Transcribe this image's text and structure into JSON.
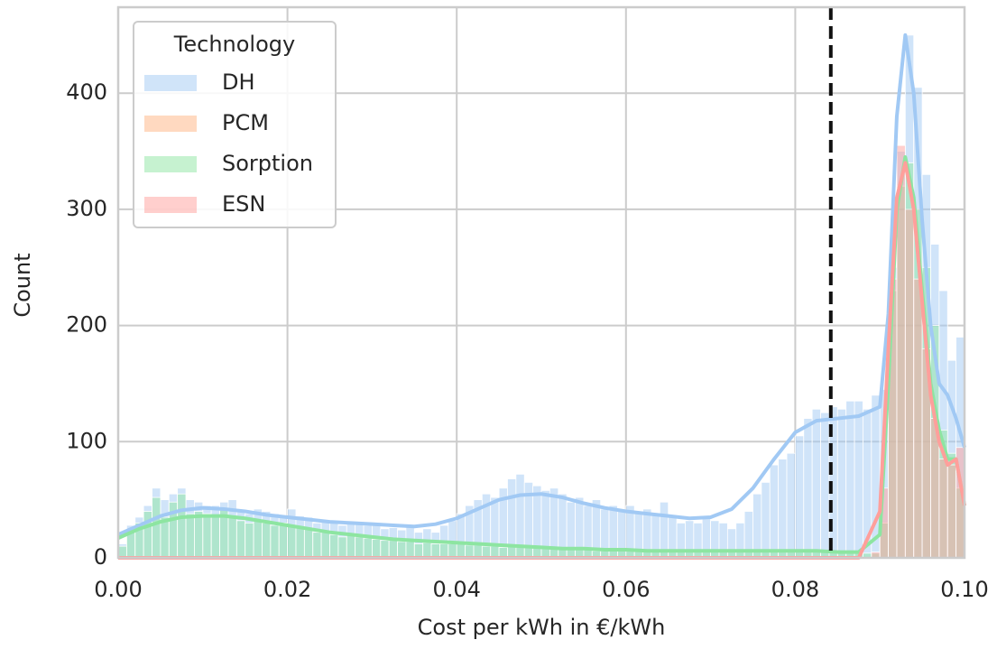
{
  "chart_data": {
    "type": "histogram",
    "xlabel": "Cost per kWh in €/kWh",
    "ylabel": "Count",
    "legend_title": "Technology",
    "legend": "upper left",
    "grid": true,
    "xlim": [
      0,
      0.1
    ],
    "ylim": [
      0,
      474
    ],
    "xticks": [
      {
        "value": 0,
        "label": "0.00"
      },
      {
        "value": 0.02,
        "label": "0.02"
      },
      {
        "value": 0.04,
        "label": "0.04"
      },
      {
        "value": 0.06,
        "label": "0.06"
      },
      {
        "value": 0.08,
        "label": "0.08"
      },
      {
        "value": 0.1,
        "label": "0.10"
      }
    ],
    "yticks": [
      0,
      100,
      200,
      300,
      400
    ],
    "vline": 0.0842,
    "bins": [
      0,
      0.001,
      0.002,
      0.003,
      0.004,
      0.005,
      0.006,
      0.007,
      0.008,
      0.009,
      0.01,
      0.011,
      0.012,
      0.013,
      0.014,
      0.015,
      0.016,
      0.017,
      0.018,
      0.019,
      0.02,
      0.021,
      0.022,
      0.023,
      0.024,
      0.025,
      0.026,
      0.027,
      0.028,
      0.029,
      0.03,
      0.031,
      0.032,
      0.033,
      0.034,
      0.035,
      0.036,
      0.037,
      0.038,
      0.039,
      0.04,
      0.041,
      0.042,
      0.043,
      0.044,
      0.045,
      0.046,
      0.047,
      0.048,
      0.049,
      0.05,
      0.051,
      0.052,
      0.053,
      0.054,
      0.055,
      0.056,
      0.057,
      0.058,
      0.059,
      0.06,
      0.061,
      0.062,
      0.063,
      0.064,
      0.065,
      0.066,
      0.067,
      0.068,
      0.069,
      0.07,
      0.071,
      0.072,
      0.073,
      0.074,
      0.075,
      0.076,
      0.077,
      0.078,
      0.079,
      0.08,
      0.081,
      0.082,
      0.083,
      0.084,
      0.085,
      0.086,
      0.087,
      0.088,
      0.089,
      0.09,
      0.091,
      0.092,
      0.093,
      0.094,
      0.095,
      0.096,
      0.097,
      0.098,
      0.099,
      0.1
    ],
    "kde_x": [
      0,
      0.0025,
      0.005,
      0.0075,
      0.01,
      0.0125,
      0.015,
      0.0175,
      0.02,
      0.0225,
      0.025,
      0.0275,
      0.03,
      0.0325,
      0.035,
      0.0375,
      0.04,
      0.0425,
      0.045,
      0.0475,
      0.05,
      0.0525,
      0.055,
      0.0575,
      0.06,
      0.0625,
      0.065,
      0.0675,
      0.07,
      0.0725,
      0.075,
      0.0775,
      0.08,
      0.0825,
      0.085,
      0.0875,
      0.09,
      0.091,
      0.092,
      0.093,
      0.094,
      0.095,
      0.096,
      0.097,
      0.098,
      0.099,
      0.1
    ],
    "series": [
      {
        "name": "DH",
        "color": "#a1c9f4",
        "values": [
          12,
          28,
          35,
          45,
          60,
          50,
          55,
          60,
          50,
          48,
          45,
          45,
          48,
          50,
          40,
          38,
          42,
          40,
          38,
          35,
          42,
          36,
          35,
          30,
          32,
          30,
          28,
          30,
          30,
          28,
          28,
          25,
          26,
          24,
          28,
          22,
          25,
          22,
          28,
          32,
          38,
          45,
          50,
          55,
          52,
          60,
          68,
          72,
          65,
          62,
          58,
          60,
          55,
          48,
          52,
          45,
          50,
          42,
          45,
          40,
          45,
          40,
          42,
          38,
          48,
          35,
          30,
          32,
          30,
          35,
          32,
          30,
          25,
          30,
          40,
          55,
          65,
          80,
          85,
          90,
          105,
          120,
          128,
          125,
          130,
          128,
          135,
          135,
          128,
          140,
          145,
          250,
          350,
          450,
          405,
          330,
          270,
          230,
          170,
          190
        ],
        "kde": [
          20,
          28,
          36,
          41,
          43,
          42,
          40,
          37,
          35,
          33,
          31,
          30,
          29,
          28,
          27,
          29,
          34,
          42,
          50,
          54,
          55,
          52,
          47,
          43,
          40,
          38,
          36,
          34,
          35,
          42,
          60,
          85,
          108,
          118,
          120,
          122,
          130,
          210,
          380,
          450,
          400,
          290,
          200,
          150,
          140,
          120,
          95
        ]
      },
      {
        "name": "PCM",
        "color": "#ffb482",
        "values": [
          0,
          0,
          0,
          0,
          0,
          0,
          0,
          0,
          0,
          0,
          0,
          0,
          0,
          0,
          0,
          0,
          0,
          0,
          0,
          0,
          0,
          0,
          0,
          0,
          0,
          0,
          0,
          0,
          0,
          0,
          0,
          0,
          0,
          0,
          0,
          0,
          0,
          0,
          0,
          0,
          0,
          0,
          0,
          0,
          0,
          0,
          0,
          0,
          0,
          0,
          0,
          0,
          0,
          0,
          0,
          0,
          0,
          0,
          0,
          0,
          0,
          0,
          0,
          0,
          0,
          0,
          0,
          0,
          0,
          0,
          0,
          0,
          0,
          0,
          0,
          0,
          0,
          0,
          0,
          0,
          0,
          0,
          0,
          0,
          0,
          0,
          0,
          0,
          0,
          0,
          0,
          0,
          0,
          0,
          0,
          0,
          0,
          0,
          0,
          0
        ]
      },
      {
        "name": "Sorption",
        "color": "#8de5a1",
        "values": [
          10,
          22,
          30,
          40,
          52,
          35,
          48,
          55,
          38,
          40,
          38,
          36,
          42,
          35,
          32,
          30,
          33,
          30,
          28,
          30,
          28,
          26,
          25,
          22,
          22,
          20,
          18,
          20,
          18,
          17,
          16,
          15,
          15,
          14,
          14,
          12,
          13,
          12,
          12,
          12,
          12,
          11,
          11,
          10,
          10,
          9,
          10,
          9,
          9,
          9,
          8,
          8,
          8,
          7,
          7,
          7,
          6,
          6,
          6,
          6,
          6,
          6,
          6,
          5,
          5,
          5,
          5,
          5,
          5,
          5,
          5,
          5,
          5,
          5,
          5,
          5,
          5,
          5,
          5,
          5,
          5,
          5,
          5,
          5,
          5,
          5,
          5,
          4,
          4,
          4,
          30,
          230,
          320,
          340,
          300,
          250,
          200,
          110,
          90,
          60
        ],
        "kde": [
          17,
          25,
          31,
          35,
          36,
          36,
          34,
          31,
          28,
          25,
          22,
          20,
          18,
          16,
          15,
          14,
          13,
          12,
          11,
          10,
          9,
          8,
          8,
          7,
          7,
          6,
          6,
          6,
          6,
          6,
          6,
          6,
          6,
          6,
          5,
          5,
          20,
          150,
          300,
          345,
          310,
          230,
          150,
          110,
          85,
          85,
          45
        ]
      },
      {
        "name": "ESN",
        "color": "#ff9f9b",
        "values": [
          0,
          0,
          0,
          0,
          0,
          0,
          0,
          0,
          0,
          0,
          0,
          0,
          0,
          0,
          0,
          0,
          0,
          0,
          0,
          0,
          0,
          0,
          0,
          0,
          0,
          0,
          0,
          0,
          0,
          0,
          0,
          0,
          0,
          0,
          0,
          0,
          0,
          0,
          0,
          0,
          0,
          0,
          0,
          0,
          0,
          0,
          0,
          0,
          0,
          0,
          0,
          0,
          0,
          0,
          0,
          0,
          0,
          0,
          0,
          0,
          0,
          0,
          0,
          0,
          0,
          0,
          0,
          0,
          0,
          0,
          0,
          0,
          0,
          0,
          0,
          0,
          0,
          0,
          0,
          0,
          0,
          0,
          0,
          0,
          0,
          0,
          0,
          0,
          0,
          5,
          60,
          240,
          355,
          300,
          240,
          180,
          120,
          85,
          80,
          95
        ],
        "kde": [
          0,
          0,
          0,
          0,
          0,
          0,
          0,
          0,
          0,
          0,
          0,
          0,
          0,
          0,
          0,
          0,
          0,
          0,
          0,
          0,
          0,
          0,
          0,
          0,
          0,
          0,
          0,
          0,
          0,
          0,
          0,
          0,
          0,
          0,
          0,
          0,
          40,
          180,
          310,
          340,
          300,
          220,
          140,
          100,
          80,
          85,
          45
        ]
      }
    ]
  }
}
